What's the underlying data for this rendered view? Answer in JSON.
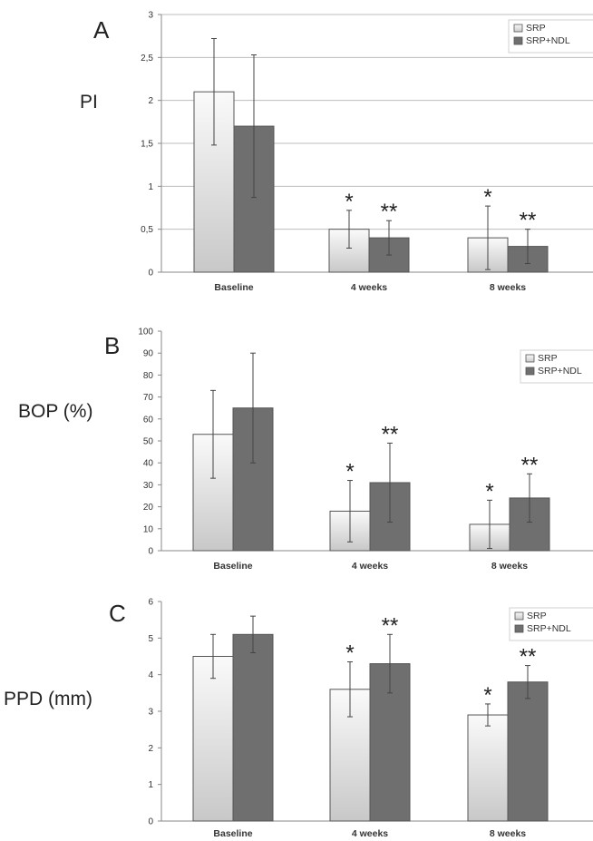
{
  "colors": {
    "srp_fill_top": "#fafafa",
    "srp_fill_bottom": "#c8c8c8",
    "srp_ndl_fill": "#6f6f6f",
    "bar_stroke": "#555555",
    "grid": "#bdbdbd",
    "axis": "#888888"
  },
  "chart_data": [
    {
      "type": "bar",
      "panel": "A",
      "ylabel": "PI",
      "categories": [
        "Baseline",
        "4 weeks",
        "8 weeks"
      ],
      "series": [
        {
          "name": "SRP",
          "values": [
            2.1,
            0.5,
            0.4
          ],
          "error": [
            0.62,
            0.22,
            0.37
          ]
        },
        {
          "name": "SRP+NDL",
          "values": [
            1.7,
            0.4,
            0.3
          ],
          "error": [
            0.83,
            0.2,
            0.2
          ]
        }
      ],
      "yticks": [
        "0",
        "0,5",
        "1",
        "1,5",
        "2",
        "2,5",
        "3"
      ],
      "ylim": [
        0,
        3
      ],
      "grid": true,
      "legend": "top-right",
      "annotations": [
        [
          "",
          ""
        ],
        [
          "*",
          "**"
        ],
        [
          "*",
          "**"
        ]
      ]
    },
    {
      "type": "bar",
      "panel": "B",
      "ylabel": "BOP (%)",
      "categories": [
        "Baseline",
        "4 weeks",
        "8 weeks"
      ],
      "series": [
        {
          "name": "SRP",
          "values": [
            53,
            18,
            12
          ],
          "error": [
            20,
            14,
            11
          ]
        },
        {
          "name": "SRP+NDL",
          "values": [
            65,
            31,
            24
          ],
          "error": [
            25,
            18,
            11
          ]
        }
      ],
      "yticks": [
        "0",
        "10",
        "20",
        "30",
        "40",
        "50",
        "60",
        "70",
        "80",
        "90",
        "100"
      ],
      "ylim": [
        0,
        100
      ],
      "grid": false,
      "legend": "top-right",
      "annotations": [
        [
          "",
          ""
        ],
        [
          "*",
          "**"
        ],
        [
          "*",
          "**"
        ]
      ]
    },
    {
      "type": "bar",
      "panel": "C",
      "ylabel": "PPD (mm)",
      "categories": [
        "Baseline",
        "4 weeks",
        "8 weeks"
      ],
      "series": [
        {
          "name": "SRP",
          "values": [
            4.5,
            3.6,
            2.9
          ],
          "error": [
            0.6,
            0.75,
            0.3
          ]
        },
        {
          "name": "SRP+NDL",
          "values": [
            5.1,
            4.3,
            3.8
          ],
          "error": [
            0.5,
            0.8,
            0.45
          ]
        }
      ],
      "yticks": [
        "0",
        "1",
        "2",
        "3",
        "4",
        "5",
        "6"
      ],
      "ylim": [
        0,
        6
      ],
      "grid": false,
      "legend": "top-right",
      "annotations": [
        [
          "",
          ""
        ],
        [
          "*",
          "**"
        ],
        [
          "*",
          "**"
        ]
      ]
    }
  ]
}
